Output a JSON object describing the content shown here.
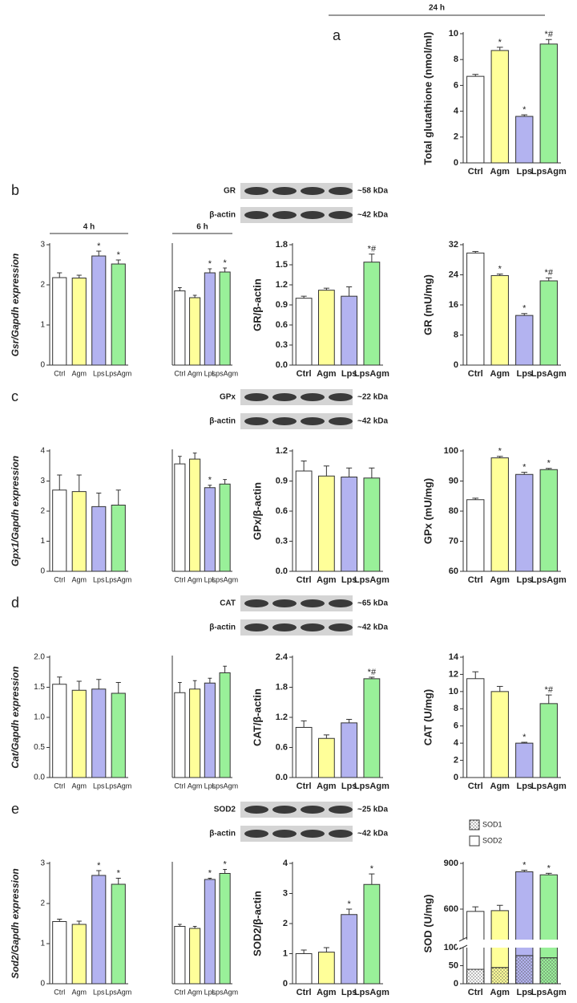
{
  "blots": [
    {
      "rows": [
        {
          "protein": "GR",
          "size": "~58 kDa"
        },
        {
          "protein": "β-actin",
          "size": "~42 kDa"
        }
      ]
    },
    {
      "rows": [
        {
          "protein": "GPx",
          "size": "~22 kDa"
        },
        {
          "protein": "β-actin",
          "size": "~42 kDa"
        }
      ]
    },
    {
      "rows": [
        {
          "protein": "CAT",
          "size": "~65 kDa"
        },
        {
          "protein": "β-actin",
          "size": "~42 kDa"
        }
      ]
    },
    {
      "rows": [
        {
          "protein": "SOD2",
          "size": "~25 kDa"
        },
        {
          "protein": "β-actin",
          "size": "~42 kDa"
        }
      ]
    }
  ],
  "chart_data": [
    {
      "type": "bar",
      "panel": "a",
      "title": "24 h",
      "ylabel": "Total glutathione (nmol/ml)",
      "categories": [
        "Ctrl",
        "Agm",
        "Lps",
        "LpsAgm"
      ],
      "values": [
        6.7,
        8.7,
        3.6,
        9.2
      ],
      "errors": [
        0.15,
        0.25,
        0.12,
        0.35
      ],
      "annotations": [
        null,
        "*",
        "*",
        "*#"
      ],
      "colors": [
        "#ffffff",
        "#ffff99",
        "#b3b3f0",
        "#99f099"
      ],
      "ylim": [
        0,
        10
      ],
      "yticks": [
        0,
        2,
        4,
        6,
        8,
        10
      ]
    },
    {
      "type": "bar",
      "panel": "b",
      "title": "4 h",
      "ylabel": "Gsr/Gapdh expression",
      "categories": [
        "Ctrl",
        "Agm",
        "Lps",
        "LpsAgm"
      ],
      "values": [
        2.18,
        2.17,
        2.72,
        2.52
      ],
      "errors": [
        0.12,
        0.07,
        0.12,
        0.1
      ],
      "annotations": [
        null,
        null,
        "*",
        "*"
      ],
      "colors": [
        "#ffffff",
        "#ffff99",
        "#b3b3f0",
        "#99f099"
      ],
      "ylim": [
        0,
        3
      ],
      "yticks": [
        0,
        1,
        2,
        3
      ]
    },
    {
      "type": "bar",
      "title": "6 h",
      "categories": [
        "Ctrl",
        "Agm",
        "Lps",
        "LpsAgm"
      ],
      "values": [
        1.85,
        1.68,
        2.3,
        2.32
      ],
      "errors": [
        0.08,
        0.06,
        0.1,
        0.1
      ],
      "annotations": [
        null,
        null,
        "*",
        "*"
      ],
      "colors": [
        "#ffffff",
        "#ffff99",
        "#b3b3f0",
        "#99f099"
      ],
      "ylim": [
        0,
        3
      ]
    },
    {
      "type": "bar",
      "ylabel": "GR/β-actin",
      "categories": [
        "Ctrl",
        "Agm",
        "Lps",
        "LpsAgm"
      ],
      "values": [
        1.0,
        1.12,
        1.03,
        1.54
      ],
      "errors": [
        0.03,
        0.03,
        0.14,
        0.12
      ],
      "annotations": [
        null,
        null,
        null,
        "*#"
      ],
      "colors": [
        "#ffffff",
        "#ffff99",
        "#b3b3f0",
        "#99f099"
      ],
      "ylim": [
        0,
        1.8
      ],
      "yticks": [
        {
          "value": 0,
          "label": "0.0"
        },
        0.3,
        0.6,
        0.9,
        1.2,
        1.5,
        1.8
      ]
    },
    {
      "type": "bar",
      "ylabel": "GR (mU/mg)",
      "categories": [
        "Ctrl",
        "Agm",
        "Lps",
        "LpsAgm"
      ],
      "values": [
        29.8,
        23.8,
        13.2,
        22.4
      ],
      "errors": [
        0.4,
        0.4,
        0.5,
        0.8
      ],
      "annotations": [
        null,
        "*",
        "*",
        "*#"
      ],
      "colors": [
        "#ffffff",
        "#ffff99",
        "#b3b3f0",
        "#99f099"
      ],
      "ylim": [
        0,
        32
      ],
      "yticks": [
        0,
        8,
        16,
        24,
        32
      ]
    },
    {
      "type": "bar",
      "panel": "c",
      "ylabel": "Gpx1/Gapdh expression",
      "categories": [
        "Ctrl",
        "Agm",
        "Lps",
        "LpsAgm"
      ],
      "values": [
        2.7,
        2.65,
        2.15,
        2.2
      ],
      "errors": [
        0.5,
        0.55,
        0.45,
        0.5
      ],
      "annotations": [
        null,
        null,
        null,
        null
      ],
      "colors": [
        "#ffffff",
        "#ffff99",
        "#b3b3f0",
        "#99f099"
      ],
      "ylim": [
        0,
        4
      ],
      "yticks": [
        0,
        1,
        2,
        3,
        4
      ]
    },
    {
      "type": "bar",
      "categories": [
        "Ctrl",
        "Agm",
        "Lps",
        "LpsAgm"
      ],
      "values": [
        3.57,
        3.73,
        2.78,
        2.9
      ],
      "errors": [
        0.25,
        0.2,
        0.08,
        0.15
      ],
      "annotations": [
        null,
        null,
        "*",
        null
      ],
      "colors": [
        "#ffffff",
        "#ffff99",
        "#b3b3f0",
        "#99f099"
      ],
      "ylim": [
        0,
        4
      ]
    },
    {
      "type": "bar",
      "ylabel": "GPx/β-actin",
      "categories": [
        "Ctrl",
        "Agm",
        "Lps",
        "LpsAgm"
      ],
      "values": [
        1.0,
        0.95,
        0.94,
        0.93
      ],
      "errors": [
        0.1,
        0.1,
        0.09,
        0.1
      ],
      "annotations": [
        null,
        null,
        null,
        null
      ],
      "colors": [
        "#ffffff",
        "#ffff99",
        "#b3b3f0",
        "#99f099"
      ],
      "ylim": [
        0,
        1.2
      ],
      "yticks": [
        {
          "value": 0,
          "label": "0.0"
        },
        0.3,
        0.6,
        0.9,
        1.2
      ]
    },
    {
      "type": "bar",
      "ylabel": "GPx (mU/mg)",
      "categories": [
        "Ctrl",
        "Agm",
        "Lps",
        "LpsAgm"
      ],
      "values": [
        83.8,
        97.7,
        92.2,
        93.8
      ],
      "errors": [
        0.5,
        0.5,
        0.7,
        0.4
      ],
      "annotations": [
        null,
        "*",
        "*",
        "*"
      ],
      "colors": [
        "#ffffff",
        "#ffff99",
        "#b3b3f0",
        "#99f099"
      ],
      "ylim": [
        60,
        100
      ],
      "yticks": [
        60,
        70,
        80,
        90,
        100
      ]
    },
    {
      "type": "bar",
      "panel": "d",
      "ylabel": "Cat/Gapdh expression",
      "categories": [
        "Ctrl",
        "Agm",
        "Lps",
        "LpsAgm"
      ],
      "values": [
        1.55,
        1.45,
        1.47,
        1.4
      ],
      "errors": [
        0.12,
        0.15,
        0.16,
        0.18
      ],
      "annotations": [
        null,
        null,
        null,
        null
      ],
      "colors": [
        "#ffffff",
        "#ffff99",
        "#b3b3f0",
        "#99f099"
      ],
      "ylim": [
        0,
        2
      ],
      "yticks": [
        {
          "value": 0,
          "label": "0.0"
        },
        0.5,
        {
          "value": 1,
          "label": "1.0"
        },
        1.5,
        {
          "value": 2,
          "label": "2.0"
        }
      ]
    },
    {
      "type": "bar",
      "categories": [
        "Ctrl",
        "Agm",
        "Lps",
        "LpsAgm"
      ],
      "values": [
        1.41,
        1.47,
        1.57,
        1.74
      ],
      "errors": [
        0.17,
        0.14,
        0.08,
        0.11
      ],
      "annotations": [
        null,
        null,
        null,
        null
      ],
      "colors": [
        "#ffffff",
        "#ffff99",
        "#b3b3f0",
        "#99f099"
      ],
      "ylim": [
        0,
        2
      ]
    },
    {
      "type": "bar",
      "ylabel": "CAT/β-actin",
      "categories": [
        "Ctrl",
        "Agm",
        "Lps",
        "LpsAgm"
      ],
      "values": [
        1.0,
        0.78,
        1.09,
        1.97
      ],
      "errors": [
        0.13,
        0.07,
        0.07,
        0.03
      ],
      "annotations": [
        null,
        null,
        null,
        "*#"
      ],
      "colors": [
        "#ffffff",
        "#ffff99",
        "#b3b3f0",
        "#99f099"
      ],
      "ylim": [
        0,
        2.4
      ],
      "yticks": [
        {
          "value": 0,
          "label": "0.0"
        },
        0.6,
        1.2,
        1.8,
        2.4
      ]
    },
    {
      "type": "bar",
      "ylabel": "CAT (U/mg)",
      "categories": [
        "Ctrl",
        "Agm",
        "Lps",
        "LpsAgm"
      ],
      "values": [
        11.5,
        10.0,
        4.0,
        8.6
      ],
      "errors": [
        0.8,
        0.6,
        0.1,
        1.0
      ],
      "annotations": [
        null,
        null,
        "*",
        "*#"
      ],
      "colors": [
        "#ffffff",
        "#ffff99",
        "#b3b3f0",
        "#99f099"
      ],
      "ylim": [
        0,
        14
      ],
      "yticks": [
        0,
        2,
        4,
        6,
        8,
        10,
        12,
        14
      ]
    },
    {
      "type": "bar",
      "panel": "e",
      "ylabel": "Sod2/Gapdh expression",
      "categories": [
        "Ctrl",
        "Agm",
        "Lps",
        "LpsAgm"
      ],
      "values": [
        1.55,
        1.48,
        2.7,
        2.48
      ],
      "errors": [
        0.06,
        0.08,
        0.12,
        0.15
      ],
      "annotations": [
        null,
        null,
        "*",
        "*"
      ],
      "colors": [
        "#ffffff",
        "#ffff99",
        "#b3b3f0",
        "#99f099"
      ],
      "ylim": [
        0,
        3
      ],
      "yticks": [
        0,
        1,
        2,
        3
      ]
    },
    {
      "type": "bar",
      "categories": [
        "Ctrl",
        "Agm",
        "Lps",
        "LpsAgm"
      ],
      "values": [
        1.43,
        1.38,
        2.6,
        2.75
      ],
      "errors": [
        0.05,
        0.05,
        0.03,
        0.1
      ],
      "annotations": [
        null,
        null,
        "*",
        "*"
      ],
      "colors": [
        "#ffffff",
        "#ffff99",
        "#b3b3f0",
        "#99f099"
      ],
      "ylim": [
        0,
        3
      ]
    },
    {
      "type": "bar",
      "ylabel": "SOD2/β-actin",
      "categories": [
        "Ctrl",
        "Agm",
        "Lps",
        "LpsAgm"
      ],
      "values": [
        1.0,
        1.05,
        2.3,
        3.3
      ],
      "errors": [
        0.12,
        0.15,
        0.18,
        0.35
      ],
      "annotations": [
        null,
        null,
        "*",
        "*"
      ],
      "colors": [
        "#ffffff",
        "#ffff99",
        "#b3b3f0",
        "#99f099"
      ],
      "ylim": [
        0,
        4
      ],
      "yticks": [
        0,
        1,
        2,
        3,
        4
      ]
    },
    {
      "type": "stacked_bar",
      "ylabel": "SOD (U/mg)",
      "categories": [
        "Ctrl",
        "Agm",
        "Lps",
        "LpsAgm"
      ],
      "colors": [
        "#ffffff",
        "#ffff99",
        "#b3b3f0",
        "#99f099"
      ],
      "series": [
        {
          "name": "SOD1",
          "pattern": "dots",
          "values": [
            40,
            45,
            78,
            72
          ],
          "errors": [
            8,
            6,
            5,
            6
          ],
          "annotations": [
            null,
            null,
            "*",
            "*"
          ]
        },
        {
          "name": "SOD2",
          "pattern": "solid",
          "values": [
            545,
            545,
            767,
            753
          ],
          "errors": [
            30,
            35,
            10,
            10
          ],
          "annotations": [
            null,
            null,
            "*",
            "*"
          ]
        }
      ],
      "ylim": [
        0,
        900
      ],
      "ybreak": [
        100,
        400
      ],
      "yticks": [
        0,
        50,
        100,
        600,
        900
      ]
    }
  ]
}
